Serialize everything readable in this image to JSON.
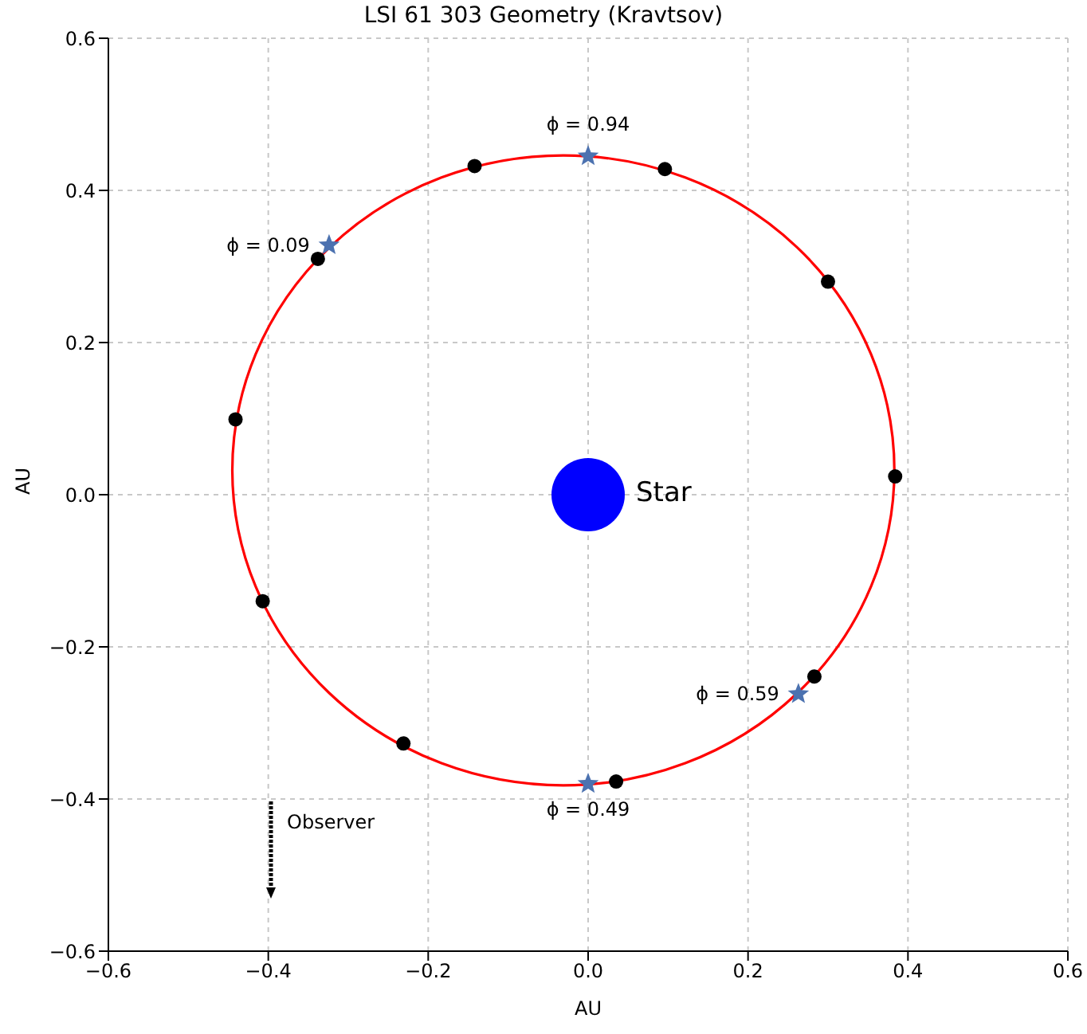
{
  "chart_data": {
    "type": "scatter",
    "title": "LSI 61 303 Geometry (Kravtsov)",
    "xlabel": "AU",
    "ylabel": "AU",
    "xlim": [
      -0.6,
      0.6
    ],
    "ylim": [
      -0.6,
      0.6
    ],
    "xticks": [
      {
        "value": -0.6,
        "label": "−0.6"
      },
      {
        "value": -0.4,
        "label": "−0.4"
      },
      {
        "value": -0.2,
        "label": "−0.2"
      },
      {
        "value": 0,
        "label": "0.0"
      },
      0.2,
      0.4,
      0.6
    ],
    "yticks": [
      {
        "value": -0.6,
        "label": "−0.6"
      },
      {
        "value": -0.4,
        "label": "−0.4"
      },
      {
        "value": -0.2,
        "label": "−0.2"
      },
      {
        "value": 0,
        "label": "0.0"
      },
      0.2,
      0.4,
      0.6
    ],
    "grid": true,
    "series": [
      {
        "type": "scatter",
        "color": "#000000",
        "marker": "circle",
        "x": [
          -0.142,
          0.096,
          0.3,
          0.384,
          0.283,
          0.035,
          -0.231,
          -0.407,
          -0.441,
          -0.338
        ],
        "values": [
          0.432,
          0.428,
          0.28,
          0.024,
          -0.239,
          -0.377,
          -0.327,
          -0.14,
          0.099,
          0.31
        ]
      },
      {
        "type": "scatter",
        "color": "#4c72b0",
        "marker": "star",
        "x": [
          0.0,
          -0.324,
          0.263,
          0.0
        ],
        "values": [
          0.445,
          0.328,
          -0.262,
          -0.38
        ]
      },
      {
        "type": "bubble",
        "color": "#0000ff",
        "x": [
          0.0
        ],
        "values": [
          0.0
        ],
        "sizes": [
          1
        ]
      }
    ],
    "annotations": [
      {
        "text": "ϕ = 0.94",
        "x": 0.0,
        "y": 0.445
      },
      {
        "text": "ϕ = 0.09",
        "x": -0.324,
        "y": 0.328
      },
      {
        "text": "ϕ = 0.59",
        "x": 0.263,
        "y": -0.262
      },
      {
        "text": "ϕ = 0.49",
        "x": 0.0,
        "y": -0.38
      },
      {
        "text": "Star",
        "x": 0.0,
        "y": 0.0
      },
      "Observer"
    ]
  }
}
